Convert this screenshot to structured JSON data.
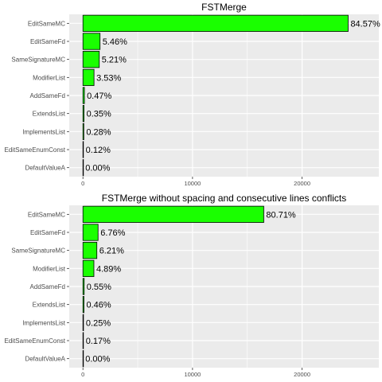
{
  "chart_data": [
    {
      "type": "bar",
      "orientation": "horizontal",
      "title": "FSTMerge",
      "xlabel": "",
      "ylabel": "",
      "categories": [
        "EditSameMC",
        "EditSameFd",
        "SameSignatureMC",
        "ModifierList",
        "AddSameFd",
        "ExtendsList",
        "ImplementsList",
        "EditSameEnumConst",
        "DefaultValueA"
      ],
      "values": [
        24200,
        1560,
        1490,
        1010,
        135,
        100,
        80,
        34,
        0
      ],
      "labels": [
        "84.57%",
        "5.46%",
        "5.21%",
        "3.53%",
        "0.47%",
        "0.35%",
        "0.28%",
        "0.12%",
        "0.00%"
      ],
      "xlim": [
        -1250,
        27000
      ],
      "xticks": [
        0,
        10000,
        20000
      ],
      "xtick_labels": [
        "0",
        "10000",
        "20000"
      ],
      "bar_color": "#1aff00",
      "grid": true,
      "background": "#ebebeb"
    },
    {
      "type": "bar",
      "orientation": "horizontal",
      "title": "FSTMerge without spacing and consecutive lines conflicts",
      "xlabel": "",
      "ylabel": "",
      "categories": [
        "EditSameMC",
        "EditSameFd",
        "SameSignatureMC",
        "ModifierList",
        "AddSameFd",
        "ExtendsList",
        "ImplementsList",
        "EditSameEnumConst",
        "DefaultValueA"
      ],
      "values": [
        16500,
        1380,
        1270,
        1000,
        112,
        94,
        51,
        35,
        0
      ],
      "labels": [
        "80.71%",
        "6.76%",
        "6.21%",
        "4.89%",
        "0.55%",
        "0.46%",
        "0.25%",
        "0.17%",
        "0.00%"
      ],
      "xlim": [
        -1250,
        27000
      ],
      "xticks": [
        0,
        10000,
        20000
      ],
      "xtick_labels": [
        "0",
        "10000",
        "20000"
      ],
      "bar_color": "#1aff00",
      "grid": true,
      "background": "#ebebeb"
    }
  ]
}
